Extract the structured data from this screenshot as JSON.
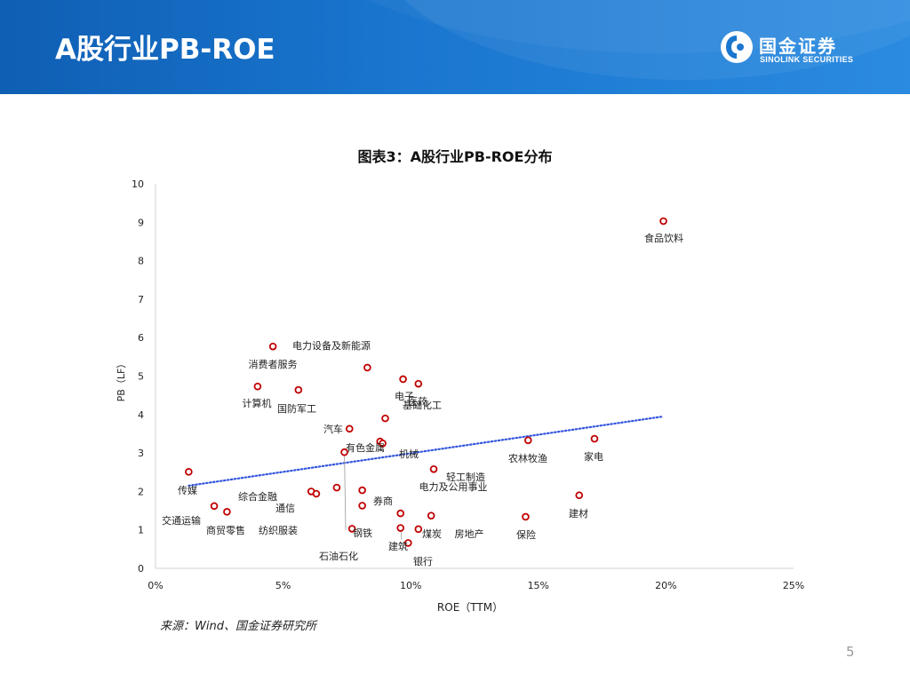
{
  "header": {
    "title": "A股行业PB-ROE",
    "logo_cn": "国金证券",
    "logo_en": "SINOLINK SECURITIES"
  },
  "chart_title": "图表3：A股行业PB-ROE分布",
  "source": "来源：Wind、国金证券研究所",
  "page_number": "5",
  "colors": {
    "header_blue": "#1a76cf",
    "point_red": "#c00000",
    "trend_blue": "#3355dd"
  },
  "chart_data": {
    "type": "scatter",
    "xlabel": "ROE（TTM）",
    "ylabel": "PB（LF）",
    "xlim": [
      0,
      0.25
    ],
    "ylim": [
      0,
      10
    ],
    "x_ticks": [
      "0%",
      "5%",
      "10%",
      "15%",
      "20%",
      "25%"
    ],
    "y_ticks": [
      "0",
      "1",
      "2",
      "3",
      "4",
      "5",
      "6",
      "7",
      "8",
      "9",
      "10"
    ],
    "grid": false,
    "trendline": {
      "type": "linear",
      "x": [
        0.013,
        0.199
      ],
      "y": [
        2.15,
        3.95
      ]
    },
    "points": [
      {
        "name": "食品饮料",
        "x": 0.199,
        "y": 9.03
      },
      {
        "name": "电力设备及新能源",
        "x": 0.083,
        "y": 5.22
      },
      {
        "name": "消费者服务",
        "x": 0.046,
        "y": 5.77
      },
      {
        "name": "计算机",
        "x": 0.04,
        "y": 4.73
      },
      {
        "name": "国防军工",
        "x": 0.056,
        "y": 4.64
      },
      {
        "name": "电子",
        "x": 0.097,
        "y": 4.92
      },
      {
        "name": "医药",
        "x": 0.103,
        "y": 4.8
      },
      {
        "name": "基础化工",
        "x": 0.09,
        "y": 3.9
      },
      {
        "name": "汽车",
        "x": 0.076,
        "y": 3.63
      },
      {
        "name": "有色金属",
        "x": 0.088,
        "y": 3.3
      },
      {
        "name": "机械",
        "x": 0.089,
        "y": 3.25
      },
      {
        "name": "农林牧渔",
        "x": 0.146,
        "y": 3.33
      },
      {
        "name": "家电",
        "x": 0.172,
        "y": 3.37
      },
      {
        "name": "传媒",
        "x": 0.013,
        "y": 2.51
      },
      {
        "name": "轻工制造",
        "x": 0.109,
        "y": 2.58
      },
      {
        "name": "电力及公用事业",
        "x": 0.081,
        "y": 2.03
      },
      {
        "name": "综合金融",
        "x": 0.061,
        "y": 2.0
      },
      {
        "name": "通信",
        "x": 0.063,
        "y": 1.94
      },
      {
        "name": "纺织服装",
        "x": 0.071,
        "y": 2.1
      },
      {
        "name": "券商",
        "x": 0.081,
        "y": 1.63
      },
      {
        "name": "交通运输",
        "x": 0.023,
        "y": 1.62
      },
      {
        "name": "商贸零售",
        "x": 0.028,
        "y": 1.47
      },
      {
        "name": "建材",
        "x": 0.166,
        "y": 1.9
      },
      {
        "name": "保险",
        "x": 0.145,
        "y": 1.34
      },
      {
        "name": "钢铁",
        "x": 0.077,
        "y": 1.03
      },
      {
        "name": "石油石化",
        "x": 0.074,
        "y": 3.02
      },
      {
        "name": "建筑",
        "x": 0.096,
        "y": 1.05
      },
      {
        "name": "煤炭",
        "x": 0.103,
        "y": 1.02
      },
      {
        "name": "房地产",
        "x": 0.108,
        "y": 1.37
      },
      {
        "name": "银行",
        "x": 0.099,
        "y": 0.66
      },
      {
        "name": "",
        "x": 0.096,
        "y": 1.43
      }
    ]
  }
}
